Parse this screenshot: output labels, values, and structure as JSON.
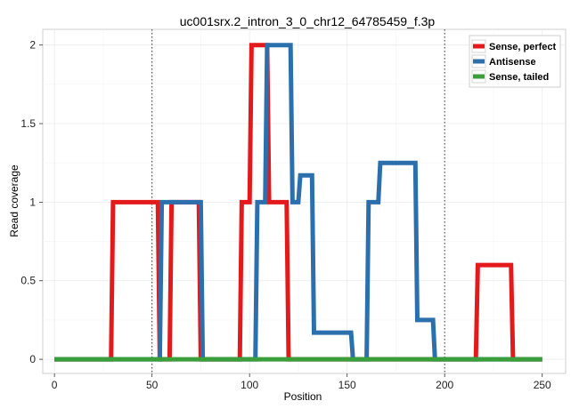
{
  "chart_data": {
    "type": "line",
    "title": "uc001srx.2_intron_3_0_chr12_64785459_f.3p",
    "xlabel": "Position",
    "ylabel": "Read coverage",
    "xlim": [
      -6,
      262
    ],
    "ylim": [
      -0.09,
      2.1
    ],
    "xticks": [
      0,
      50,
      100,
      150,
      200,
      250
    ],
    "xtick_labels": [
      "0",
      "50",
      "100",
      "150",
      "200",
      "250"
    ],
    "yticks": [
      0,
      0.5,
      1,
      1.5,
      2
    ],
    "ytick_labels": [
      "0",
      "0.5",
      "1",
      "1.5",
      "2"
    ],
    "vlines": [
      50,
      200
    ],
    "grid": true,
    "legend_position": "top-right",
    "series": [
      {
        "name": "Sense, perfect",
        "color": "#e31a1c",
        "x": [
          0,
          29,
          30,
          53,
          54,
          59,
          60,
          74,
          75,
          95,
          96,
          100,
          101,
          109,
          110,
          119,
          120,
          216,
          217,
          234,
          235,
          250
        ],
        "y": [
          0,
          0,
          1,
          1,
          0,
          0,
          1,
          1,
          0,
          0,
          1,
          1,
          2,
          2,
          1,
          1,
          0,
          0,
          0.6,
          0.6,
          0,
          0
        ]
      },
      {
        "name": "Antisense",
        "color": "#2c6fad",
        "x": [
          0,
          54,
          55,
          75,
          76,
          103,
          104,
          108,
          109,
          121,
          122,
          125,
          126,
          132,
          133,
          152,
          153,
          160,
          161,
          166,
          167,
          185,
          186,
          194,
          195,
          250
        ],
        "y": [
          0,
          0,
          1,
          1,
          0,
          0,
          1,
          1,
          2,
          2,
          1,
          1,
          1.17,
          1.17,
          0.17,
          0.17,
          0,
          0,
          1,
          1,
          1.25,
          1.25,
          0.25,
          0.25,
          0,
          0
        ]
      },
      {
        "name": "Sense, tailed",
        "color": "#3a9f3a",
        "x": [
          0,
          250
        ],
        "y": [
          0,
          0
        ]
      }
    ]
  }
}
